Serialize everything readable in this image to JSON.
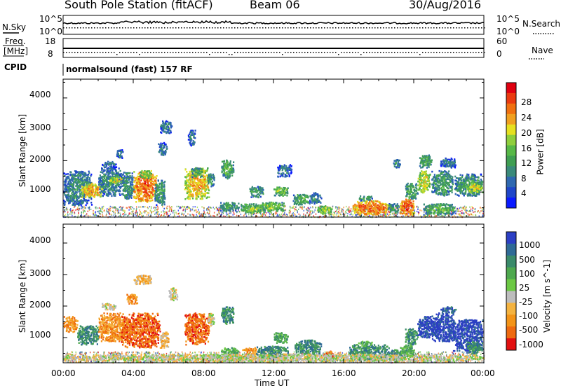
{
  "header": {
    "station": "South Pole Station (fitACF)",
    "beam": "Beam 06",
    "date": "30/Aug/2016"
  },
  "left_labels": {
    "nsky": "N.Sky",
    "freq_line1": "Freq.",
    "freq_line2": "[MHz]",
    "cpid": "CPID"
  },
  "right_labels": {
    "nsearch": "N.Search",
    "nave": "Nave"
  },
  "strip_axes": {
    "noise_ticks_left": [
      "10^5",
      "10^0"
    ],
    "noise_ticks_right": [
      "10^5",
      "10^0"
    ],
    "freq_ticks": [
      "18",
      "8"
    ],
    "nave_ticks": [
      "60",
      "0"
    ]
  },
  "cpid_text": "normalsound (fast) 157 RF",
  "chart_data": [
    {
      "type": "heatmap",
      "quantity": "Power",
      "ylabel": "Slant Range [km]",
      "xlabel": "",
      "xlim": [
        "00:00",
        "24:00"
      ],
      "ylim": [
        200,
        4600
      ],
      "y_ticks": [
        "1000",
        "2000",
        "3000",
        "4000"
      ],
      "colorbar": {
        "label": "Power [dB]",
        "range": [
          0,
          32
        ],
        "ticks": [
          "4",
          "8",
          "12",
          "16",
          "20",
          "24",
          "28"
        ],
        "colors": [
          "#0a1aff",
          "#1f46c8",
          "#2f68b0",
          "#3a8a7a",
          "#3f9e52",
          "#57b847",
          "#8fce3c",
          "#e6e020",
          "#f0a020",
          "#f07010",
          "#ea3a10",
          "#e00010"
        ]
      },
      "blobs": [
        {
          "x0": 0.0,
          "x1": 1.6,
          "y0": 600,
          "y1": 1700,
          "v": 10
        },
        {
          "x0": 1.0,
          "x1": 2.2,
          "y0": 850,
          "y1": 1300,
          "v": 24
        },
        {
          "x0": 2.0,
          "x1": 3.3,
          "y0": 900,
          "y1": 1800,
          "v": 10
        },
        {
          "x0": 2.6,
          "x1": 3.6,
          "y0": 1300,
          "y1": 1500,
          "v": 20
        },
        {
          "x0": 2.2,
          "x1": 3.0,
          "y0": 1800,
          "y1": 2000,
          "v": 8
        },
        {
          "x0": 3.0,
          "x1": 3.4,
          "y0": 2100,
          "y1": 2400,
          "v": 8
        },
        {
          "x0": 3.3,
          "x1": 4.0,
          "y0": 800,
          "y1": 1650,
          "v": 11
        },
        {
          "x0": 4.0,
          "x1": 5.3,
          "y0": 700,
          "y1": 1700,
          "v": 27
        },
        {
          "x0": 4.3,
          "x1": 5.0,
          "y0": 1450,
          "y1": 1700,
          "v": 18
        },
        {
          "x0": 5.2,
          "x1": 5.8,
          "y0": 600,
          "y1": 1400,
          "v": 12
        },
        {
          "x0": 5.4,
          "x1": 5.9,
          "y0": 2200,
          "y1": 2600,
          "v": 8
        },
        {
          "x0": 5.5,
          "x1": 6.2,
          "y0": 2900,
          "y1": 3300,
          "v": 8
        },
        {
          "x0": 6.9,
          "x1": 8.3,
          "y0": 800,
          "y1": 1800,
          "v": 23
        },
        {
          "x0": 7.3,
          "x1": 7.9,
          "y0": 1500,
          "y1": 1800,
          "v": 13
        },
        {
          "x0": 7.1,
          "x1": 7.5,
          "y0": 2500,
          "y1": 3000,
          "v": 8
        },
        {
          "x0": 8.2,
          "x1": 8.6,
          "y0": 1200,
          "y1": 1600,
          "v": 12
        },
        {
          "x0": 9.0,
          "x1": 9.7,
          "y0": 1450,
          "y1": 2050,
          "v": 14
        },
        {
          "x0": 8.9,
          "x1": 10.0,
          "y0": 400,
          "y1": 700,
          "v": 12
        },
        {
          "x0": 10.1,
          "x1": 11.5,
          "y0": 350,
          "y1": 650,
          "v": 16
        },
        {
          "x0": 11.2,
          "x1": 12.6,
          "y0": 400,
          "y1": 700,
          "v": 16
        },
        {
          "x0": 10.6,
          "x1": 11.4,
          "y0": 850,
          "y1": 1200,
          "v": 12
        },
        {
          "x0": 12.0,
          "x1": 12.8,
          "y0": 900,
          "y1": 1200,
          "v": 16
        },
        {
          "x0": 12.2,
          "x1": 13.0,
          "y0": 1500,
          "y1": 1900,
          "v": 8
        },
        {
          "x0": 13.1,
          "x1": 14.0,
          "y0": 600,
          "y1": 950,
          "v": 14
        },
        {
          "x0": 14.0,
          "x1": 14.7,
          "y0": 650,
          "y1": 1000,
          "v": 10
        },
        {
          "x0": 14.5,
          "x1": 15.3,
          "y0": 300,
          "y1": 600,
          "v": 18
        },
        {
          "x0": 16.5,
          "x1": 18.5,
          "y0": 300,
          "y1": 750,
          "v": 27
        },
        {
          "x0": 16.8,
          "x1": 17.6,
          "y0": 750,
          "y1": 900,
          "v": 12
        },
        {
          "x0": 18.5,
          "x1": 19.1,
          "y0": 350,
          "y1": 650,
          "v": 12
        },
        {
          "x0": 19.2,
          "x1": 20.0,
          "y0": 300,
          "y1": 800,
          "v": 28
        },
        {
          "x0": 19.5,
          "x1": 20.2,
          "y0": 800,
          "y1": 1300,
          "v": 14
        },
        {
          "x0": 18.8,
          "x1": 19.2,
          "y0": 1800,
          "y1": 2100,
          "v": 10
        },
        {
          "x0": 20.2,
          "x1": 20.9,
          "y0": 1000,
          "y1": 1700,
          "v": 20
        },
        {
          "x0": 20.3,
          "x1": 21.0,
          "y0": 1800,
          "y1": 2200,
          "v": 13
        },
        {
          "x0": 21.0,
          "x1": 22.2,
          "y0": 900,
          "y1": 1700,
          "v": 12
        },
        {
          "x0": 21.5,
          "x1": 22.4,
          "y0": 1800,
          "y1": 2100,
          "v": 8
        },
        {
          "x0": 22.3,
          "x1": 23.9,
          "y0": 900,
          "y1": 1600,
          "v": 12
        },
        {
          "x0": 23.0,
          "x1": 23.9,
          "y0": 1000,
          "y1": 1300,
          "v": 20
        },
        {
          "x0": 20.5,
          "x1": 22.3,
          "y0": 300,
          "y1": 650,
          "v": 14
        }
      ]
    },
    {
      "type": "heatmap",
      "quantity": "Velocity",
      "ylabel": "Slant Range [km]",
      "xlabel": "Time UT",
      "xlim": [
        "00:00",
        "24:00"
      ],
      "x_ticks": [
        "00:00",
        "04:00",
        "08:00",
        "12:00",
        "16:00",
        "20:00",
        "00:00"
      ],
      "ylim": [
        200,
        4600
      ],
      "y_ticks": [
        "1000",
        "2000",
        "3000",
        "4000"
      ],
      "colorbar": {
        "label": "Velocity [m s^-1]",
        "ticks": [
          "1000",
          "500",
          "100",
          "25",
          "-25",
          "-100",
          "-500",
          "-1000"
        ],
        "colors": [
          "#2c3fc4",
          "#2f6a96",
          "#3a8a6a",
          "#4ea84e",
          "#6cc844",
          "#bdbdbd",
          "#f4b340",
          "#f39418",
          "#ee6a10",
          "#e21010"
        ]
      },
      "blobs": [
        {
          "x0": 0.0,
          "x1": 0.8,
          "y0": 1200,
          "y1": 1700,
          "v": 7
        },
        {
          "x0": 0.8,
          "x1": 2.0,
          "y0": 800,
          "y1": 1400,
          "v": 2
        },
        {
          "x0": 2.0,
          "x1": 3.6,
          "y0": 900,
          "y1": 1800,
          "v": 7
        },
        {
          "x0": 2.2,
          "x1": 3.0,
          "y0": 1900,
          "y1": 2100,
          "v": 5
        },
        {
          "x0": 3.3,
          "x1": 5.5,
          "y0": 700,
          "y1": 1800,
          "v": 8
        },
        {
          "x0": 3.6,
          "x1": 4.2,
          "y0": 2100,
          "y1": 2400,
          "v": 7
        },
        {
          "x0": 4.0,
          "x1": 5.0,
          "y0": 2700,
          "y1": 3000,
          "v": 6
        },
        {
          "x0": 5.5,
          "x1": 6.0,
          "y0": 700,
          "y1": 1200,
          "v": 6
        },
        {
          "x0": 6.9,
          "x1": 8.3,
          "y0": 800,
          "y1": 1800,
          "v": 8
        },
        {
          "x0": 6.0,
          "x1": 6.5,
          "y0": 2200,
          "y1": 2600,
          "v": 5
        },
        {
          "x0": 8.2,
          "x1": 8.6,
          "y0": 1400,
          "y1": 1800,
          "v": 5
        },
        {
          "x0": 9.0,
          "x1": 9.7,
          "y0": 1450,
          "y1": 2000,
          "v": 2
        },
        {
          "x0": 9.0,
          "x1": 10.0,
          "y0": 300,
          "y1": 700,
          "v": 3
        },
        {
          "x0": 10.2,
          "x1": 11.0,
          "y0": 400,
          "y1": 700,
          "v": 7
        },
        {
          "x0": 11.0,
          "x1": 12.8,
          "y0": 350,
          "y1": 750,
          "v": 2
        },
        {
          "x0": 12.0,
          "x1": 12.8,
          "y0": 850,
          "y1": 1200,
          "v": 3
        },
        {
          "x0": 13.2,
          "x1": 14.7,
          "y0": 500,
          "y1": 950,
          "v": 2
        },
        {
          "x0": 14.8,
          "x1": 15.4,
          "y0": 300,
          "y1": 600,
          "v": 8
        },
        {
          "x0": 16.3,
          "x1": 18.6,
          "y0": 300,
          "y1": 800,
          "v": 2
        },
        {
          "x0": 16.8,
          "x1": 17.6,
          "y0": 750,
          "y1": 900,
          "v": 3
        },
        {
          "x0": 18.6,
          "x1": 19.3,
          "y0": 300,
          "y1": 650,
          "v": 2
        },
        {
          "x0": 19.2,
          "x1": 20.0,
          "y0": 350,
          "y1": 800,
          "v": 3
        },
        {
          "x0": 19.5,
          "x1": 20.2,
          "y0": 800,
          "y1": 1300,
          "v": 2
        },
        {
          "x0": 20.2,
          "x1": 21.1,
          "y0": 1000,
          "y1": 1700,
          "v": 0
        },
        {
          "x0": 21.0,
          "x1": 22.3,
          "y0": 900,
          "y1": 1800,
          "v": 0
        },
        {
          "x0": 21.5,
          "x1": 22.4,
          "y0": 1800,
          "y1": 2000,
          "v": 1
        },
        {
          "x0": 22.2,
          "x1": 23.9,
          "y0": 600,
          "y1": 1600,
          "v": 0
        },
        {
          "x0": 23.0,
          "x1": 23.9,
          "y0": 500,
          "y1": 900,
          "v": 2
        },
        {
          "x0": 0.0,
          "x1": 24.0,
          "y0": 250,
          "y1": 500,
          "v": 5
        }
      ]
    }
  ],
  "colors": {
    "frame": "#000000",
    "trace": "#000000",
    "background": "#ffffff"
  }
}
